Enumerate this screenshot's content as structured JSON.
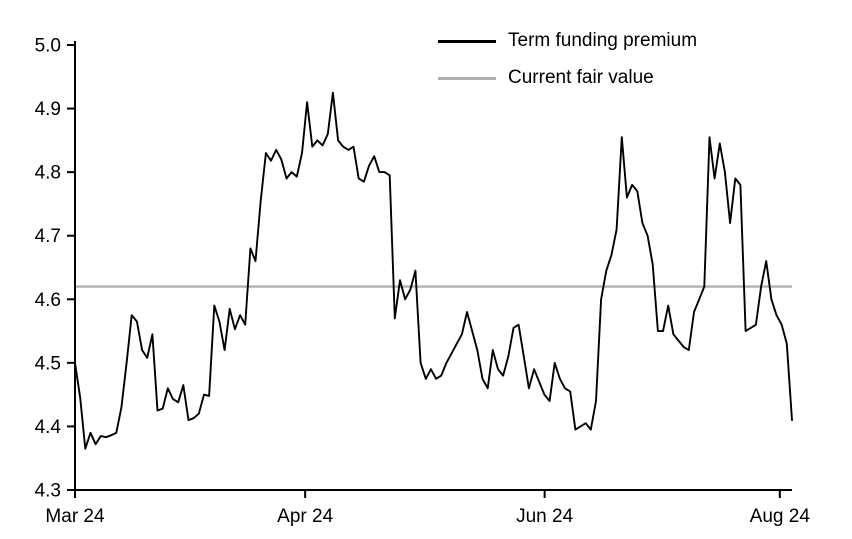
{
  "chart_data": {
    "type": "line",
    "title": "",
    "xlabel": "",
    "ylabel": "",
    "ylim": [
      4.3,
      5.0
    ],
    "y_ticks": [
      5.0,
      4.9,
      4.8,
      4.7,
      4.6,
      4.5,
      4.4,
      4.3
    ],
    "x_ticks": [
      {
        "label": "Mar 24",
        "pos": 0.0
      },
      {
        "label": "Apr 24",
        "pos": 0.321
      },
      {
        "label": "Jun 24",
        "pos": 0.655
      },
      {
        "label": "Aug 24",
        "pos": 0.983
      }
    ],
    "fair_value": 4.62,
    "series": [
      {
        "name": "Term funding premium",
        "values": [
          4.5,
          4.445,
          4.365,
          4.39,
          4.372,
          4.385,
          4.383,
          4.386,
          4.39,
          4.43,
          4.5,
          4.575,
          4.565,
          4.52,
          4.508,
          4.545,
          4.425,
          4.428,
          4.46,
          4.443,
          4.438,
          4.465,
          4.41,
          4.413,
          4.42,
          4.45,
          4.448,
          4.59,
          4.565,
          4.52,
          4.585,
          4.553,
          4.575,
          4.56,
          4.68,
          4.66,
          4.755,
          4.83,
          4.818,
          4.835,
          4.82,
          4.79,
          4.8,
          4.793,
          4.83,
          4.91,
          4.84,
          4.85,
          4.842,
          4.86,
          4.925,
          4.85,
          4.84,
          4.835,
          4.84,
          4.79,
          4.785,
          4.81,
          4.825,
          4.8,
          4.8,
          4.795,
          4.57,
          4.63,
          4.6,
          4.615,
          4.645,
          4.5,
          4.475,
          4.49,
          4.475,
          4.48,
          4.5,
          4.515,
          4.53,
          4.545,
          4.58,
          4.55,
          4.52,
          4.475,
          4.46,
          4.52,
          4.49,
          4.48,
          4.51,
          4.555,
          4.56,
          4.51,
          4.46,
          4.49,
          4.47,
          4.45,
          4.44,
          4.5,
          4.475,
          4.46,
          4.455,
          4.395,
          4.4,
          4.405,
          4.395,
          4.44,
          4.6,
          4.645,
          4.67,
          4.71,
          4.855,
          4.76,
          4.78,
          4.77,
          4.72,
          4.7,
          4.655,
          4.55,
          4.55,
          4.59,
          4.545,
          4.535,
          4.525,
          4.52,
          4.58,
          4.6,
          4.62,
          4.855,
          4.79,
          4.845,
          4.8,
          4.72,
          4.79,
          4.78,
          4.55,
          4.555,
          4.56,
          4.62,
          4.66,
          4.6,
          4.575,
          4.56,
          4.53,
          4.41
        ]
      }
    ],
    "legend": [
      {
        "label": "Term funding premium",
        "color": "#000000"
      },
      {
        "label": "Current fair value",
        "color": "#b0b0b0"
      }
    ],
    "colors": {
      "series": "#000000",
      "fair_value": "#b0b0b0",
      "axis": "#000000",
      "text": "#000000"
    },
    "grid": false,
    "legend_position": "top-center"
  }
}
